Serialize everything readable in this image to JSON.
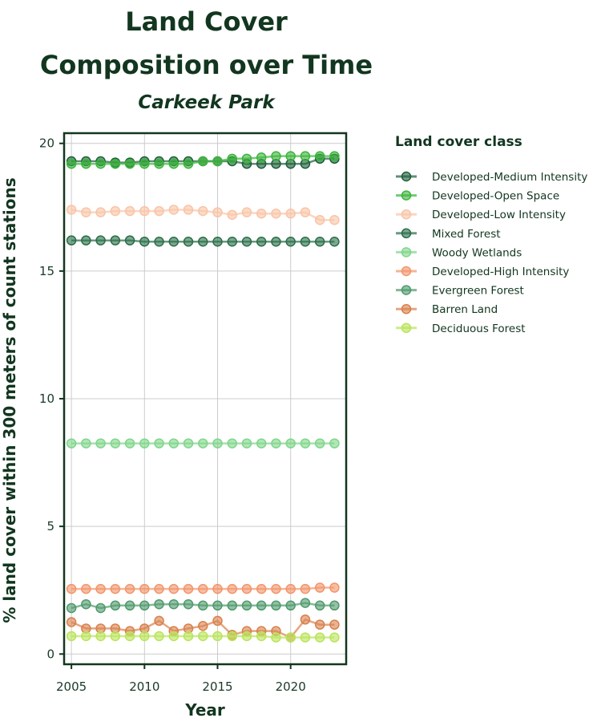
{
  "chart_data": {
    "type": "line",
    "title": "Land Cover Composition over Time",
    "subtitle": "Carkeek Park",
    "xlabel": "Year",
    "ylabel": "% land cover within 300 meters of count stations",
    "xlim": [
      2004.5,
      2023.8
    ],
    "ylim": [
      -0.4,
      20.4
    ],
    "xticks": [
      2005,
      2010,
      2015,
      2020
    ],
    "yticks": [
      0,
      5,
      10,
      15,
      20
    ],
    "grid": true,
    "legend_title": "Land cover class",
    "legend_position": "right",
    "x": [
      2005,
      2006,
      2007,
      2008,
      2009,
      2010,
      2011,
      2012,
      2013,
      2014,
      2015,
      2016,
      2017,
      2018,
      2019,
      2020,
      2021,
      2022,
      2023
    ],
    "series": [
      {
        "name": "Developed-Medium Intensity",
        "color": "#1d5e3a",
        "values": [
          19.3,
          19.3,
          19.3,
          19.25,
          19.25,
          19.3,
          19.3,
          19.3,
          19.3,
          19.3,
          19.3,
          19.3,
          19.2,
          19.2,
          19.2,
          19.2,
          19.2,
          19.4,
          19.4
        ]
      },
      {
        "name": "Developed-Open Space",
        "color": "#3cb43c",
        "values": [
          19.2,
          19.2,
          19.2,
          19.2,
          19.2,
          19.2,
          19.2,
          19.2,
          19.2,
          19.3,
          19.3,
          19.4,
          19.4,
          19.45,
          19.5,
          19.5,
          19.5,
          19.5,
          19.5
        ]
      },
      {
        "name": "Developed-Low Intensity",
        "color": "#f9c4a6",
        "values": [
          17.4,
          17.3,
          17.3,
          17.35,
          17.35,
          17.35,
          17.35,
          17.4,
          17.4,
          17.35,
          17.3,
          17.2,
          17.3,
          17.25,
          17.25,
          17.25,
          17.3,
          17.0,
          17.0
        ]
      },
      {
        "name": "Mixed Forest",
        "color": "#2a6e48",
        "values": [
          16.2,
          16.2,
          16.2,
          16.2,
          16.2,
          16.15,
          16.15,
          16.15,
          16.15,
          16.15,
          16.15,
          16.15,
          16.15,
          16.15,
          16.15,
          16.15,
          16.15,
          16.15,
          16.15
        ]
      },
      {
        "name": "Woody Wetlands",
        "color": "#7fd68a",
        "values": [
          8.25,
          8.25,
          8.25,
          8.25,
          8.25,
          8.25,
          8.25,
          8.25,
          8.25,
          8.25,
          8.25,
          8.25,
          8.25,
          8.25,
          8.25,
          8.25,
          8.25,
          8.25,
          8.25
        ]
      },
      {
        "name": "Developed-High Intensity",
        "color": "#f2956a",
        "values": [
          2.55,
          2.55,
          2.55,
          2.55,
          2.55,
          2.55,
          2.55,
          2.55,
          2.55,
          2.55,
          2.55,
          2.55,
          2.55,
          2.55,
          2.55,
          2.55,
          2.55,
          2.6,
          2.6
        ]
      },
      {
        "name": "Evergreen Forest",
        "color": "#4f9a6c",
        "values": [
          1.8,
          1.95,
          1.8,
          1.9,
          1.9,
          1.9,
          1.95,
          1.95,
          1.95,
          1.9,
          1.9,
          1.9,
          1.9,
          1.9,
          1.9,
          1.9,
          2.0,
          1.9,
          1.9
        ]
      },
      {
        "name": "Barren Land",
        "color": "#d9804c",
        "values": [
          1.25,
          1.0,
          1.0,
          1.0,
          0.9,
          1.0,
          1.3,
          0.9,
          1.0,
          1.1,
          1.3,
          0.75,
          0.9,
          0.9,
          0.9,
          0.65,
          1.35,
          1.15,
          1.15
        ]
      },
      {
        "name": "Deciduous Forest",
        "color": "#b9e45a",
        "values": [
          0.7,
          0.7,
          0.7,
          0.7,
          0.7,
          0.7,
          0.7,
          0.7,
          0.7,
          0.7,
          0.7,
          0.7,
          0.7,
          0.7,
          0.65,
          0.65,
          0.65,
          0.65,
          0.65
        ]
      }
    ]
  }
}
